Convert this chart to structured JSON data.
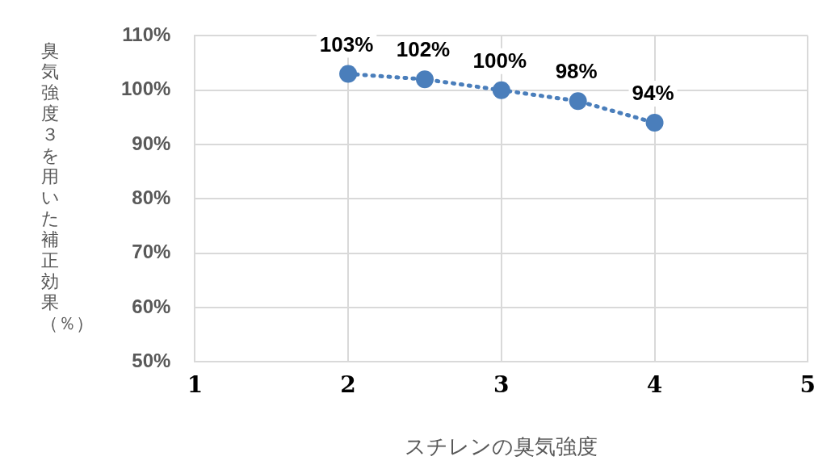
{
  "chart_data": {
    "type": "line",
    "xlabel": "スチレンの臭気強度",
    "ylabel": "臭気強度３を用いた補正効果（％）",
    "x": [
      2,
      2.5,
      3,
      3.5,
      4
    ],
    "series": [
      {
        "color": "#4a7ebb",
        "values": [
          103,
          102,
          100,
          98,
          94
        ],
        "value_labels": [
          "103%",
          "102%",
          "100%",
          "98%",
          "94%"
        ]
      }
    ],
    "xlim": [
      1,
      5
    ],
    "xticks": [
      1,
      2,
      3,
      4,
      5
    ],
    "ylim": [
      50,
      110
    ],
    "yticks": [
      {
        "value": 50,
        "label": "50%"
      },
      {
        "value": 60,
        "label": "60%"
      },
      {
        "value": 70,
        "label": "70%"
      },
      {
        "value": 80,
        "label": "80%"
      },
      {
        "value": 90,
        "label": "90%"
      },
      {
        "value": 100,
        "label": "100%"
      },
      {
        "value": 110,
        "label": "110%"
      }
    ],
    "grid": true,
    "legend": false,
    "marker": "circle",
    "line_style": "dotted"
  }
}
